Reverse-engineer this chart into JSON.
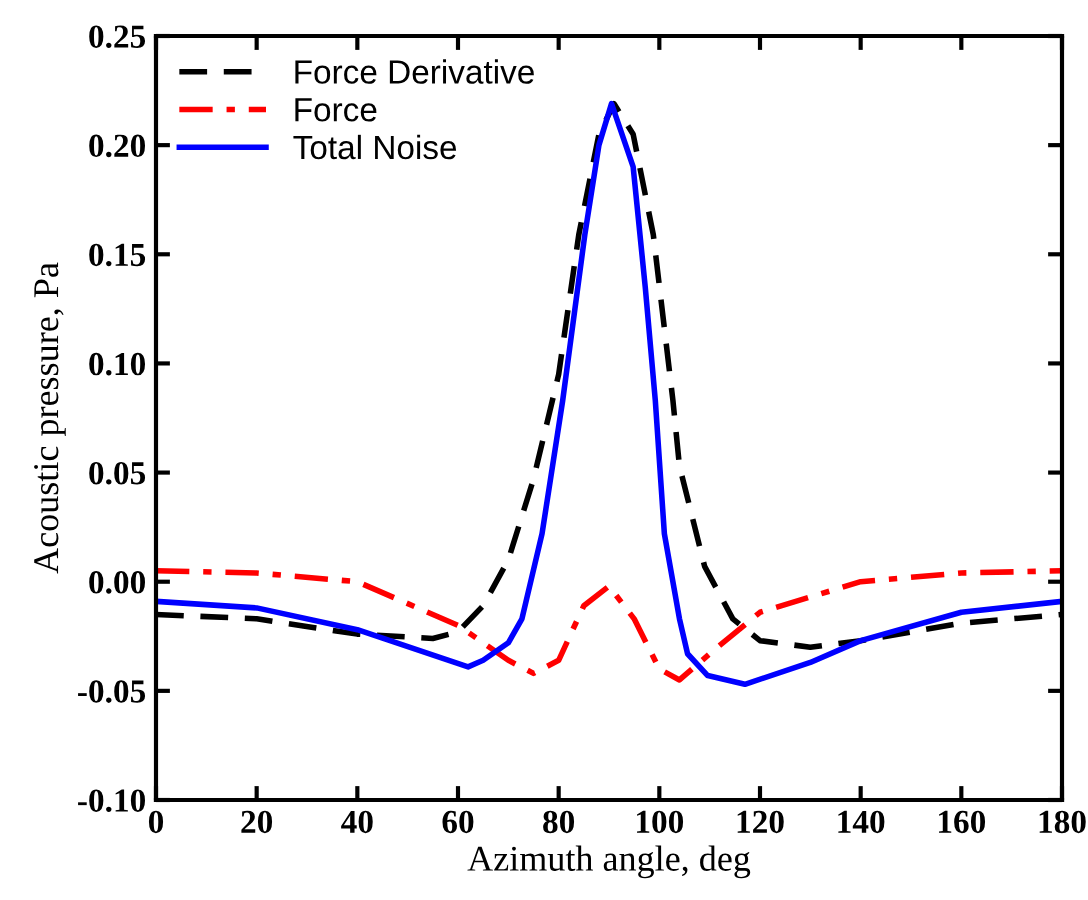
{
  "chart_data": {
    "type": "line",
    "xlabel": "Azimuth angle, deg",
    "ylabel": "Acoustic pressure, Pa",
    "xlim": [
      0,
      180
    ],
    "ylim": [
      -0.1,
      0.25
    ],
    "xticks": [
      0,
      20,
      40,
      60,
      80,
      100,
      120,
      140,
      160,
      180
    ],
    "yticks": [
      {
        "value": -0.1,
        "label": "-0.10"
      },
      {
        "value": -0.05,
        "label": "-0.05"
      },
      {
        "value": 0,
        "label": "0.00"
      },
      {
        "value": 0.05,
        "label": "0.05"
      },
      {
        "value": 0.1,
        "label": "0.10"
      },
      {
        "value": 0.15,
        "label": "0.15"
      },
      {
        "value": 0.2,
        "label": "0.20"
      },
      {
        "value": 0.25,
        "label": "0.25"
      }
    ],
    "grid": false,
    "legend": "top left",
    "marker": "none",
    "series": [
      {
        "name": "Force Derivative",
        "color": "#000000",
        "line_style": "dashed",
        "x": [
          0,
          20,
          40,
          55,
          60,
          65,
          70,
          75,
          80,
          84,
          88,
          91,
          94.8,
          98.8,
          102.7,
          104,
          109,
          114.6,
          120,
          130,
          140,
          160,
          180
        ],
        "values": [
          -0.015,
          -0.017,
          -0.024,
          -0.026,
          -0.023,
          -0.011,
          0.01,
          0.047,
          0.095,
          0.159,
          0.205,
          0.219,
          0.205,
          0.159,
          0.083,
          0.053,
          0.007,
          -0.017,
          -0.027,
          -0.03,
          -0.027,
          -0.019,
          -0.015
        ]
      },
      {
        "name": "Force",
        "color": "#ff0000",
        "line_style": "dashdot",
        "x": [
          0,
          20,
          40,
          60,
          70,
          75,
          80,
          85,
          90,
          95,
          100,
          104,
          110,
          120,
          140,
          160,
          180
        ],
        "values": [
          0.005,
          0.004,
          0.0,
          -0.02,
          -0.036,
          -0.042,
          -0.036,
          -0.011,
          -0.002,
          -0.017,
          -0.04,
          -0.045,
          -0.033,
          -0.014,
          0.0,
          0.004,
          0.005
        ]
      },
      {
        "name": "Total Noise",
        "color": "#0000ff",
        "line_style": "solid",
        "x": [
          0,
          20,
          40,
          62,
          65,
          70,
          72.7,
          76.7,
          80.8,
          85.2,
          88,
          90.5,
          94.8,
          97.2,
          99.2,
          101,
          104,
          105.6,
          109.6,
          117,
          130,
          140,
          160,
          180
        ],
        "values": [
          -0.009,
          -0.012,
          -0.022,
          -0.039,
          -0.036,
          -0.028,
          -0.017,
          0.022,
          0.083,
          0.159,
          0.2,
          0.219,
          0.19,
          0.135,
          0.083,
          0.022,
          -0.017,
          -0.033,
          -0.043,
          -0.047,
          -0.037,
          -0.027,
          -0.014,
          -0.009
        ]
      }
    ]
  }
}
